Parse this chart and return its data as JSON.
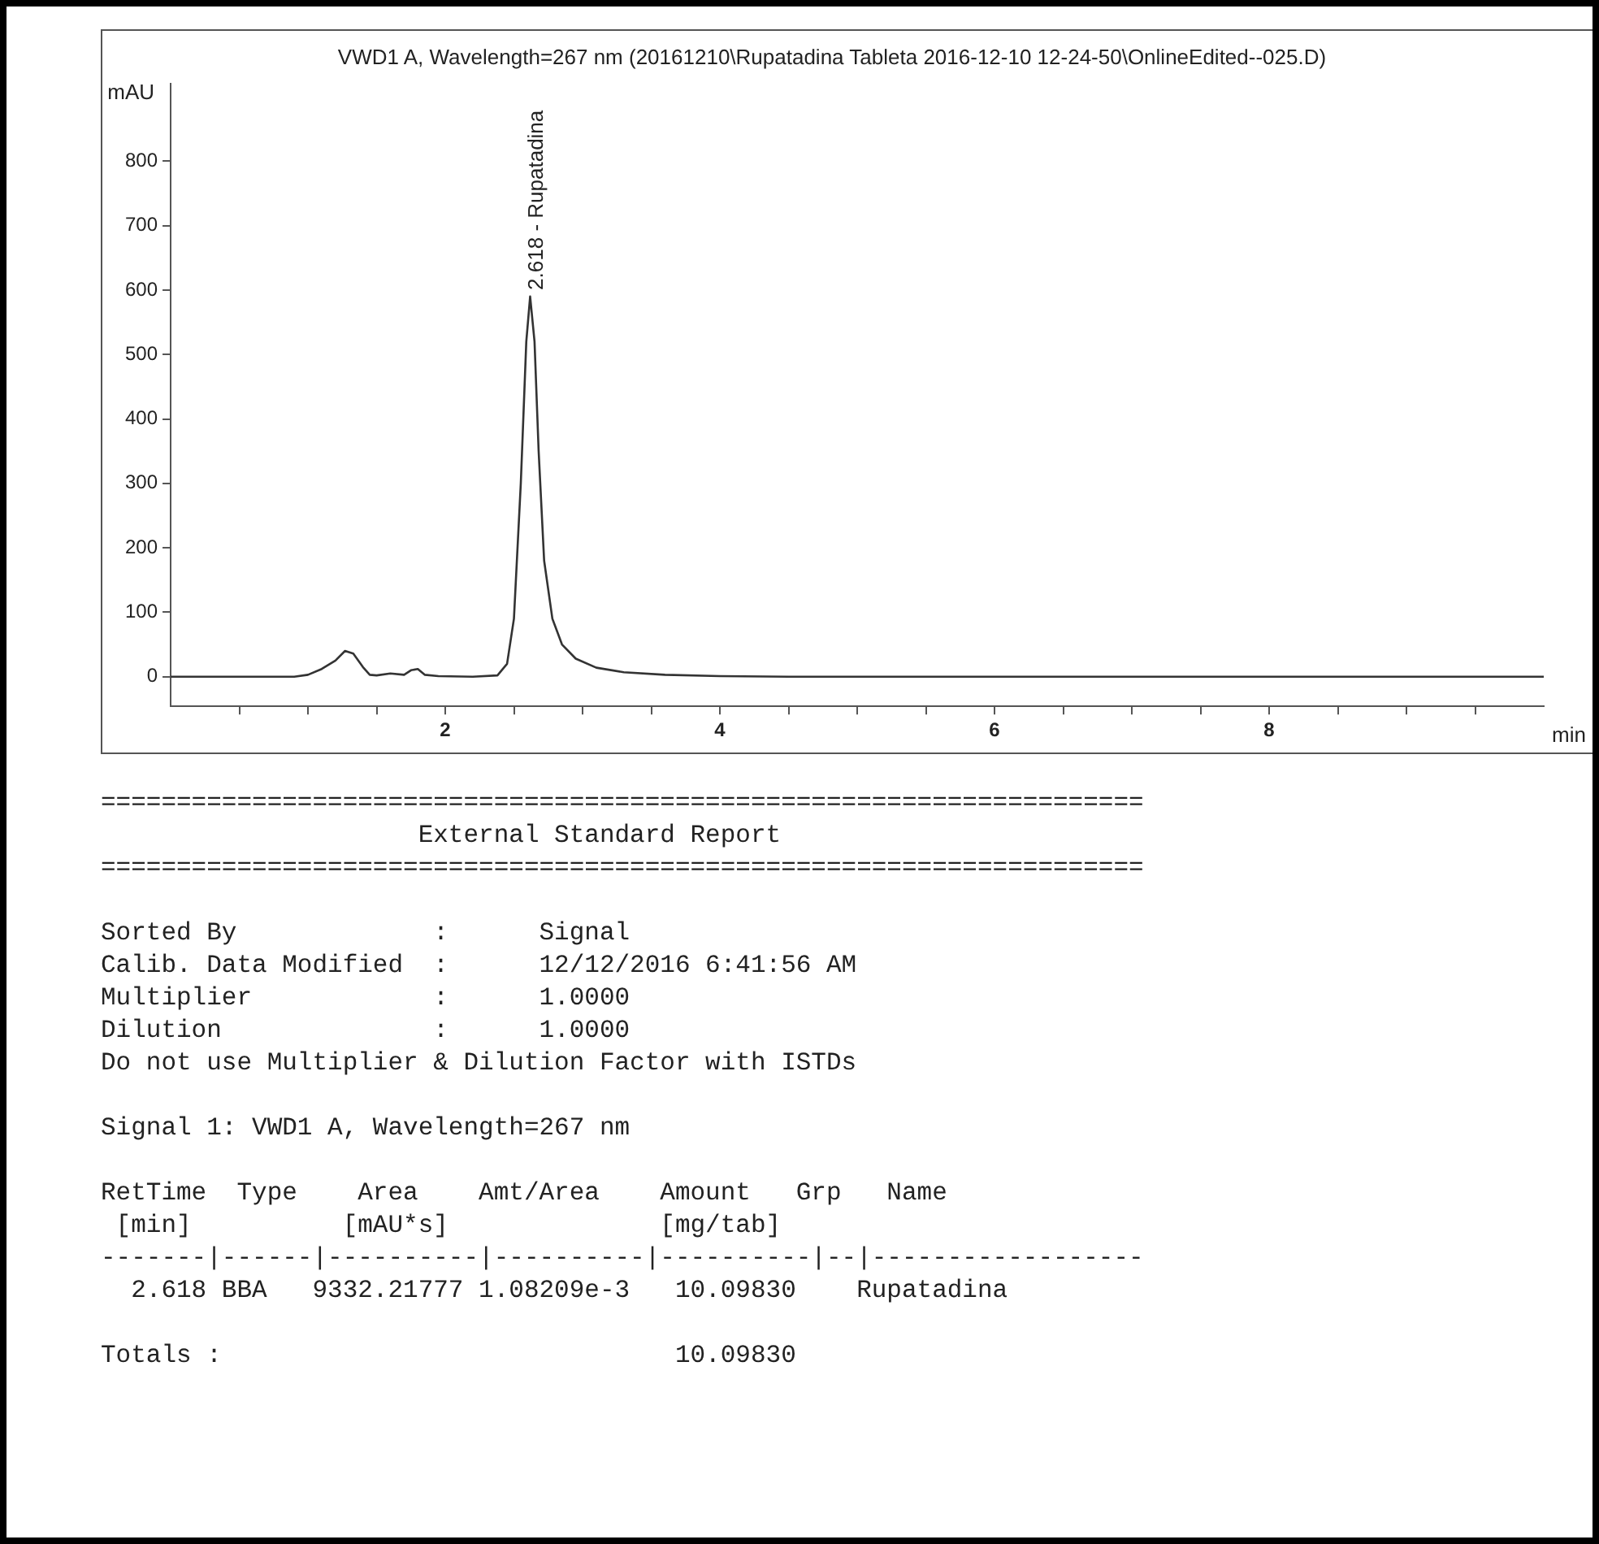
{
  "chart_data": {
    "type": "line",
    "title": "VWD1 A, Wavelength=267 nm (20161210\\Rupatadina Tableta 2016-12-10 12-24-50\\OnlineEdited--025.D)",
    "xlabel": "min",
    "ylabel": "mAU",
    "series": [
      {
        "color": "#333333",
        "x": [
          0,
          0.4,
          0.9,
          1.0,
          1.1,
          1.2,
          1.27,
          1.33,
          1.4,
          1.45,
          1.5,
          1.6,
          1.7,
          1.75,
          1.8,
          1.85,
          1.95,
          2.2,
          2.38,
          2.45,
          2.5,
          2.55,
          2.59,
          2.618,
          2.65,
          2.68,
          2.72,
          2.78,
          2.85,
          2.95,
          3.1,
          3.3,
          3.6,
          4.0,
          4.5,
          6,
          8,
          10
        ],
        "values": [
          0,
          0,
          0,
          3,
          12,
          25,
          40,
          36,
          15,
          3,
          2,
          5,
          3,
          10,
          12,
          3,
          1,
          0,
          2,
          20,
          90,
          300,
          520,
          590,
          520,
          350,
          180,
          90,
          50,
          28,
          14,
          7,
          3,
          1,
          0,
          0,
          0,
          0
        ]
      }
    ],
    "xlim": [
      0,
      10
    ],
    "ylim": [
      -46,
      920
    ],
    "xticks": [
      {
        "value": 0.5,
        "label": null
      },
      {
        "value": 1,
        "label": null
      },
      {
        "value": 1.5,
        "label": null
      },
      2,
      {
        "value": 2.5,
        "label": null
      },
      {
        "value": 3,
        "label": null
      },
      {
        "value": 3.5,
        "label": null
      },
      4,
      {
        "value": 4.5,
        "label": null
      },
      {
        "value": 5,
        "label": null
      },
      {
        "value": 5.5,
        "label": null
      },
      6,
      {
        "value": 6.5,
        "label": null
      },
      {
        "value": 7,
        "label": null
      },
      {
        "value": 7.5,
        "label": null
      },
      8,
      {
        "value": 8.5,
        "label": null
      },
      {
        "value": 9,
        "label": null
      },
      {
        "value": 9.5,
        "label": null
      }
    ],
    "yticks": [
      0,
      100,
      200,
      300,
      400,
      500,
      600,
      700,
      800
    ],
    "grid": false,
    "legend": false,
    "marker": "none",
    "line_style": "solid",
    "annotations": [
      {
        "text": "2.618 - Rupatadina",
        "x": 2.618,
        "y": 590
      },
      "=====================================================================",
      "                     External Standard Report",
      "=====================================================================",
      "Sorted By             :      Signal",
      "Calib. Data Modified  :      12/12/2016 6:41:56 AM",
      "Multiplier            :      1.0000",
      "Dilution              :      1.0000",
      "Do not use Multiplier & Dilution Factor with ISTDs",
      "Signal 1: VWD1 A, Wavelength=267 nm",
      "RetTime  Type    Area    Amt/Area    Amount   Grp   Name",
      " [min]          [mAU*s]              [mg/tab]",
      "-------|------|----------|----------|----------|--|------------------",
      "  2.618 BBA   9332.21777 1.08209e-3   10.09830    Rupatadina",
      "Totals :                              10.09830"
    ]
  }
}
